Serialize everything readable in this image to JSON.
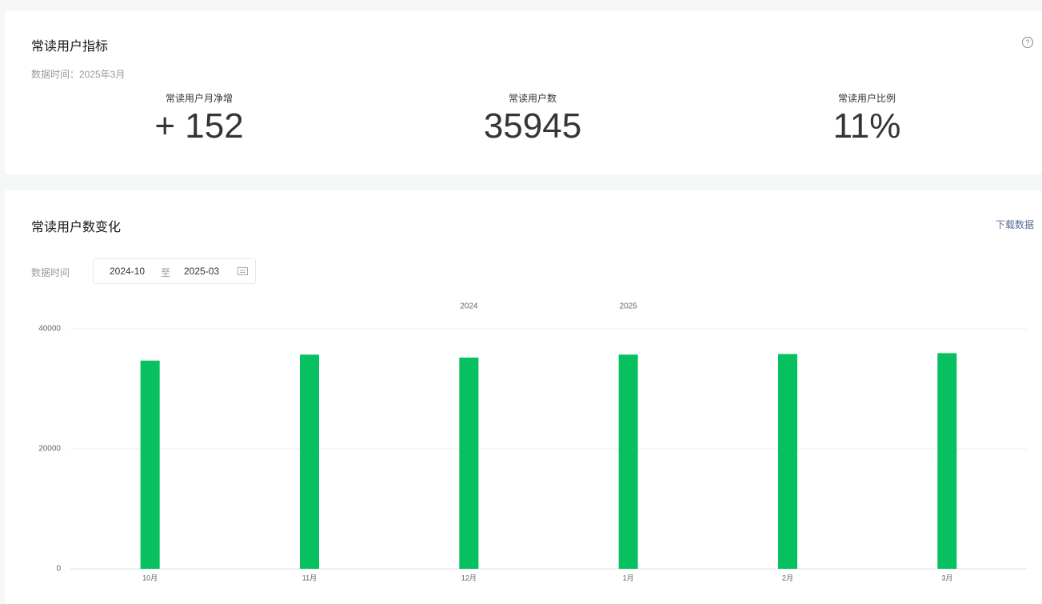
{
  "metrics_card": {
    "title": "常读用户指标",
    "data_time": "数据时间：2025年3月",
    "metrics": [
      {
        "label": "常读用户月净增",
        "value": "+ 152"
      },
      {
        "label": "常读用户数",
        "value": "35945"
      },
      {
        "label": "常读用户比例",
        "value": "11%"
      }
    ]
  },
  "trend_card": {
    "title": "常读用户数变化",
    "download": "下载数据",
    "date_label": "数据时间",
    "date_start": "2024-10",
    "date_separator": "至",
    "date_end": "2025-03"
  },
  "chart_data": {
    "type": "bar",
    "year_labels": [
      "2024",
      "2025"
    ],
    "categories": [
      "10月",
      "11月",
      "12月",
      "1月",
      "2月",
      "3月"
    ],
    "values": [
      34700,
      35700,
      35200,
      35700,
      35793,
      35945
    ],
    "color": "#07c160",
    "ylim": [
      0,
      40000
    ],
    "yticks": [
      0,
      20000,
      40000
    ],
    "grid": true
  }
}
